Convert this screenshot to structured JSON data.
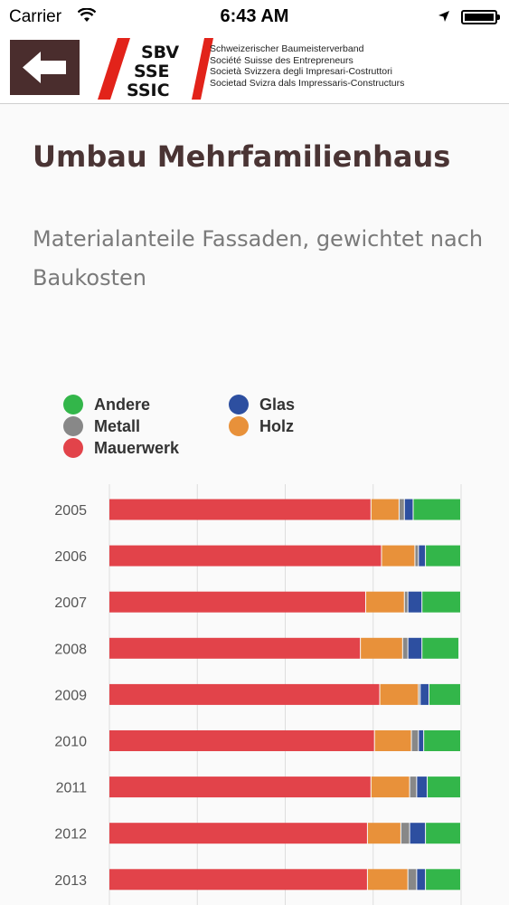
{
  "status_bar": {
    "carrier": "Carrier",
    "time": "6:43 AM"
  },
  "header": {
    "logo_lines": [
      "SBV",
      "SSE",
      "SSIC"
    ],
    "org_names": [
      "Schweizerischer Baumeisterverband",
      "Société Suisse des Entrepreneurs",
      "Società Svizzera degli Impresari-Costruttori",
      "Societad Svizra dals Impressaris-Constructurs"
    ],
    "logo_color": "#e2231a"
  },
  "page": {
    "title": "Umbau Mehrfamilienhaus",
    "subtitle": "Materialanteile Fassaden, gewichtet nach Baukosten"
  },
  "legend": [
    {
      "label": "Andere",
      "color": "#33b64a"
    },
    {
      "label": "Glas",
      "color": "#2d4fa0"
    },
    {
      "label": "Metall",
      "color": "#888888"
    },
    {
      "label": "Holz",
      "color": "#e8913a"
    },
    {
      "label": "Mauerwerk",
      "color": "#e2434a"
    }
  ],
  "chart_data": {
    "type": "bar",
    "orientation": "horizontal",
    "stacked": true,
    "categories": [
      "2005",
      "2006",
      "2007",
      "2008",
      "2009",
      "2010",
      "2011",
      "2012",
      "2013"
    ],
    "series": [
      {
        "name": "Mauerwerk",
        "color": "#e2434a",
        "values": [
          74.5,
          77.5,
          73,
          71.5,
          77,
          75.5,
          74.5,
          73.5,
          73.5
        ]
      },
      {
        "name": "Holz",
        "color": "#e8913a",
        "values": [
          8,
          9.5,
          11,
          12,
          11,
          10.5,
          11,
          9.5,
          11.5
        ]
      },
      {
        "name": "Metall",
        "color": "#888888",
        "values": [
          1.5,
          1,
          1,
          1.5,
          0.5,
          2,
          2,
          2.5,
          2.5
        ]
      },
      {
        "name": "Glas",
        "color": "#2d4fa0",
        "values": [
          2.5,
          2,
          4,
          4,
          2.5,
          1.5,
          3,
          4.5,
          2.5
        ]
      },
      {
        "name": "Andere",
        "color": "#33b64a",
        "values": [
          13.5,
          10,
          11,
          10.5,
          9,
          10.5,
          9.5,
          10,
          10
        ]
      }
    ],
    "xlim": [
      0,
      100
    ],
    "grid": true,
    "legend_placement": "top-left"
  }
}
